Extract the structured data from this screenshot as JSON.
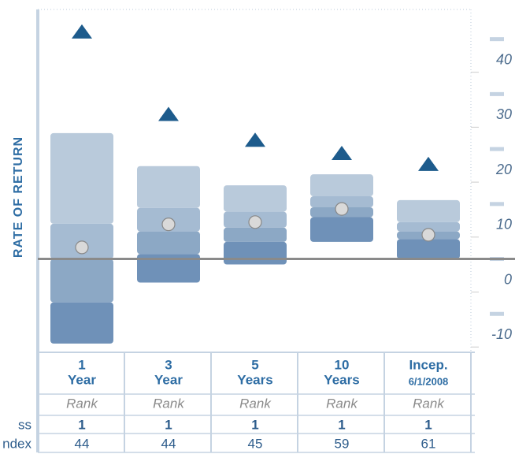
{
  "chart_data": {
    "type": "quartile",
    "y_label": "RATE OF RETURN",
    "categories": [
      [
        "1",
        "Year"
      ],
      [
        "3",
        "Year"
      ],
      [
        "5",
        "Years"
      ],
      [
        "10",
        "Years"
      ],
      [
        "Incep.",
        "6/1/2008"
      ]
    ],
    "ylim": [
      -15.7,
      45.4
    ],
    "yticks": [
      -10,
      0,
      10,
      20,
      30,
      40
    ],
    "band_colors": [
      "#b9cadb",
      "#a5bbd2",
      "#8ca8c5",
      "#6f91b8"
    ],
    "bands": [
      [
        22.9,
        6.4,
        0.0,
        -7.9,
        -15.4
      ],
      [
        16.9,
        9.3,
        5.0,
        0.9,
        -4.3
      ],
      [
        13.4,
        8.6,
        5.7,
        3.1,
        -1.0
      ],
      [
        15.4,
        11.4,
        9.4,
        7.6,
        3.1
      ],
      [
        10.7,
        6.7,
        5.0,
        3.6,
        0.0
      ]
    ],
    "markers": [
      {
        "shape": "triangle",
        "color": "#1d5b8c",
        "values": [
          41.4,
          26.4,
          21.7,
          19.3,
          17.3
        ]
      },
      {
        "shape": "circle",
        "color": "#d9d9d9",
        "values": [
          2.1,
          6.3,
          6.7,
          9.1,
          4.4
        ]
      }
    ],
    "rank_label": "Rank",
    "table": [
      {
        "label": "ss",
        "values": [
          "1",
          "1",
          "1",
          "1",
          "1"
        ]
      },
      {
        "label": "ndex",
        "values": [
          "44",
          "44",
          "45",
          "59",
          "61"
        ]
      }
    ]
  }
}
